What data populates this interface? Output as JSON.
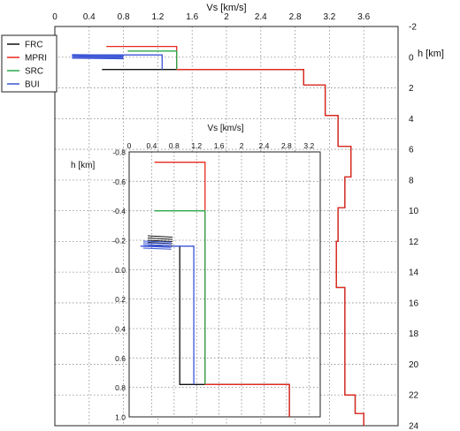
{
  "chart_data": [
    {
      "type": "line",
      "xlabel": "Vs [km/s]",
      "ylabel": "h [km]",
      "xlim": [
        0,
        4.0
      ],
      "ylim": [
        24,
        -2
      ],
      "xticks": [
        "0",
        "0.4",
        "0.8",
        "1.2",
        "1.6",
        "2",
        "2.4",
        "2.8",
        "3.2",
        "3.6"
      ],
      "yticks": [
        "-2",
        "0",
        "2",
        "4",
        "6",
        "8",
        "10",
        "12",
        "14",
        "16",
        "18",
        "20",
        "22",
        "24"
      ],
      "grid": true,
      "legend_position": "top-left",
      "series": [
        {
          "name": "FRC",
          "color": "#111111",
          "x": [
            0.55,
            0.8,
            0.8,
            1.42,
            1.42,
            2.9,
            2.9,
            3.15,
            3.15,
            3.3,
            3.3,
            3.45,
            3.45,
            3.38,
            3.38,
            3.3,
            3.3,
            3.28,
            3.28,
            3.38,
            3.38,
            3.5,
            3.5,
            3.6,
            3.6
          ],
          "y": [
            0.8,
            0.8,
            0.8,
            0.8,
            0.8,
            0.8,
            1.8,
            1.8,
            3.8,
            3.8,
            5.8,
            5.8,
            7.8,
            7.8,
            9.8,
            9.8,
            12.0,
            12.0,
            15.0,
            15.0,
            22.0,
            22.0,
            23.2,
            23.2,
            24.0
          ]
        },
        {
          "name": "MPRI",
          "color": "#e8281e",
          "x": [
            0.6,
            1.42,
            1.42,
            2.9,
            2.9,
            3.15,
            3.15,
            3.3,
            3.3,
            3.45,
            3.45,
            3.38,
            3.38,
            3.3,
            3.3,
            3.28,
            3.28,
            3.38,
            3.38,
            3.5,
            3.5,
            3.6,
            3.6
          ],
          "y": [
            -0.7,
            -0.7,
            0.8,
            0.8,
            1.8,
            1.8,
            3.8,
            3.8,
            5.8,
            5.8,
            7.8,
            7.8,
            9.8,
            9.8,
            12.0,
            12.0,
            15.0,
            15.0,
            22.0,
            22.0,
            23.2,
            23.2,
            24.0
          ]
        },
        {
          "name": "SRC",
          "color": "#2aa84a",
          "x": [
            0.85,
            1.42,
            1.42
          ],
          "y": [
            -0.4,
            -0.4,
            0.8
          ]
        },
        {
          "name": "BUI",
          "color": "#3b55d6",
          "x": [
            0.2,
            0.9,
            1.25,
            1.25
          ],
          "y": [
            -0.15,
            -0.15,
            -0.15,
            0.8
          ]
        }
      ]
    },
    {
      "type": "line",
      "xlabel": "Vs [km/s]",
      "ylabel": "h [km]",
      "xlim": [
        0,
        3.4
      ],
      "ylim": [
        1.0,
        -0.8
      ],
      "xticks": [
        "0",
        "0.4",
        "0.8",
        "1.2",
        "1.6",
        "2",
        "2.4",
        "2.8",
        "3.2"
      ],
      "yticks": [
        "-0.8",
        "-0.6",
        "-0.4",
        "-0.2",
        "0.0",
        "0.2",
        "0.4",
        "0.6",
        "0.8",
        "1.0"
      ],
      "grid": true,
      "series": [
        {
          "name": "FRC",
          "color": "#111111",
          "x": [
            0.9,
            0.9,
            1.35,
            1.35,
            2.85,
            2.85
          ],
          "y": [
            -0.16,
            0.78,
            0.78,
            0.78,
            0.78,
            1.0
          ]
        },
        {
          "name": "MPRI",
          "color": "#e8281e",
          "x": [
            0.45,
            1.35,
            1.35,
            2.85,
            2.85
          ],
          "y": [
            -0.73,
            -0.73,
            0.78,
            0.78,
            1.0
          ]
        },
        {
          "name": "SRC",
          "color": "#2aa84a",
          "x": [
            0.45,
            1.35,
            1.35
          ],
          "y": [
            -0.4,
            -0.4,
            0.78
          ]
        },
        {
          "name": "BUI",
          "color": "#3b55d6",
          "x": [
            0.2,
            0.85,
            1.15,
            1.15
          ],
          "y": [
            -0.16,
            -0.16,
            -0.16,
            0.78
          ]
        }
      ]
    }
  ],
  "legend": {
    "items": [
      {
        "name": "FRC",
        "color": "#111111"
      },
      {
        "name": "MPRI",
        "color": "#e8281e"
      },
      {
        "name": "SRC",
        "color": "#2aa84a"
      },
      {
        "name": "BUI",
        "color": "#3b55d6"
      }
    ]
  }
}
